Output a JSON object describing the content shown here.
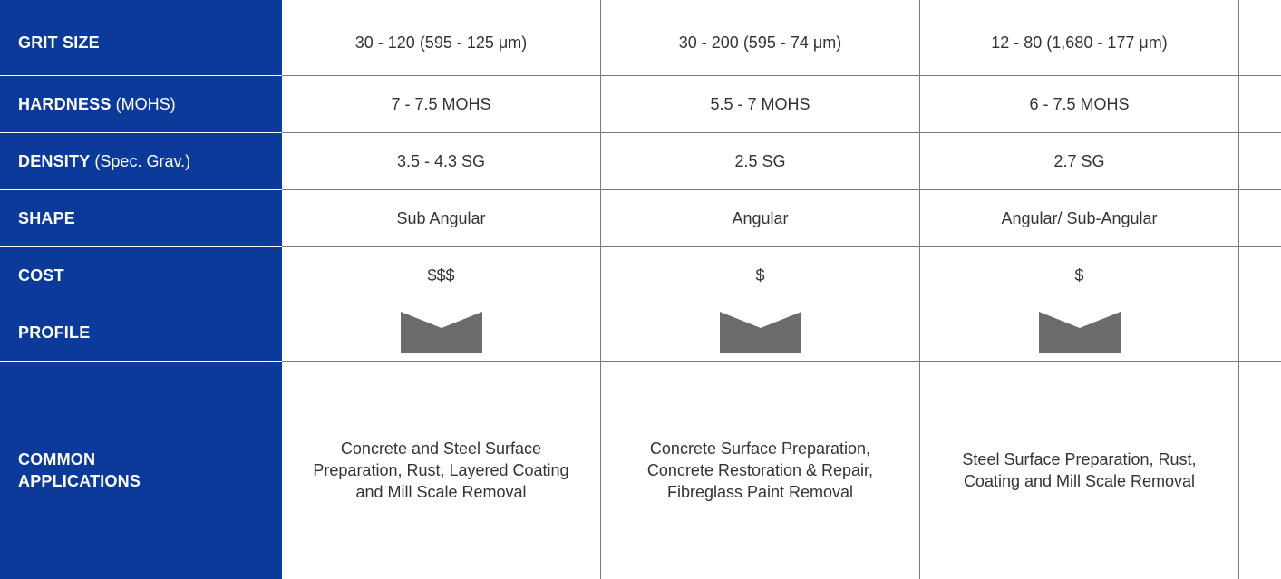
{
  "colors": {
    "label_background": "#0b3a9a",
    "label_text": "#ffffff",
    "value_text": "#333333",
    "grid_line": "#7a7a7a",
    "profile_fill": "#6b6b6b"
  },
  "rows": [
    {
      "label_bold": "GRIT SIZE",
      "label_normal": "",
      "values": [
        "30 - 120 (595 - 125 μm)",
        "30 - 200 (595 - 74 μm)",
        "12 - 80 (1,680 - 177 μm)"
      ]
    },
    {
      "label_bold": "HARDNESS",
      "label_normal": " (MOHS)",
      "values": [
        "7 - 7.5 MOHS",
        "5.5 - 7 MOHS",
        "6 - 7.5 MOHS"
      ]
    },
    {
      "label_bold": "DENSITY",
      "label_normal": " (Spec. Grav.)",
      "values": [
        "3.5 - 4.3 SG",
        "2.5 SG",
        "2.7 SG"
      ]
    },
    {
      "label_bold": "SHAPE",
      "label_normal": "",
      "values": [
        "Sub Angular",
        "Angular",
        "Angular/ Sub-Angular"
      ]
    },
    {
      "label_bold": "COST",
      "label_normal": "",
      "values": [
        "$$$",
        "$",
        "$"
      ]
    },
    {
      "label_bold": "PROFILE",
      "label_normal": "",
      "profile_icons": [
        "profile-shape-icon",
        "profile-shape-icon",
        "profile-shape-icon"
      ]
    },
    {
      "label_bold": "COMMON APPLICATIONS",
      "label_normal": "",
      "values": [
        "Concrete and Steel Surface Preparation, Rust, Layered Coating and Mill Scale Removal",
        "Concrete Surface Preparation, Concrete Restoration & Repair, Fibreglass Paint Removal",
        "Steel Surface Preparation, Rust, Coating and Mill Scale Removal"
      ]
    }
  ]
}
